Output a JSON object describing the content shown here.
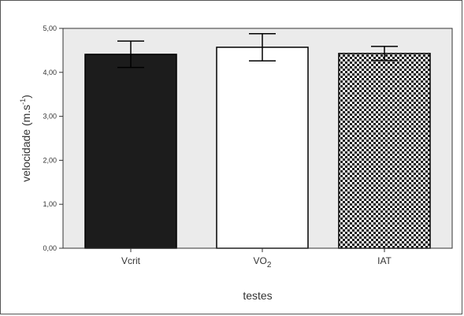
{
  "chart_data": {
    "type": "bar",
    "title": "",
    "xlabel": "testes",
    "ylabel_base": "velocidade (m.s",
    "ylabel_sup": "-1",
    "ylabel_close": ")",
    "ylim": [
      0,
      5
    ],
    "yticks": [
      0,
      1,
      2,
      3,
      4,
      5
    ],
    "ytick_labels": [
      "0,00",
      "1,00",
      "2,00",
      "3,00",
      "4,00",
      "5,00"
    ],
    "grid": false,
    "categories": [
      "Vcrit",
      "VO2",
      "IAT"
    ],
    "category_labels": [
      {
        "base": "Vcrit",
        "sub": ""
      },
      {
        "base": "VO",
        "sub": "2"
      },
      {
        "base": "IAT",
        "sub": ""
      }
    ],
    "values": [
      4.41,
      4.57,
      4.43
    ],
    "error": [
      0.3,
      0.31,
      0.16
    ],
    "bar_styles": [
      "solid-black",
      "white",
      "checkered"
    ],
    "colors": {
      "plot_background": "#ebebeb",
      "bar_dark": "#1c1c1c",
      "bar_light": "#ffffff",
      "axis": "#333333"
    }
  }
}
